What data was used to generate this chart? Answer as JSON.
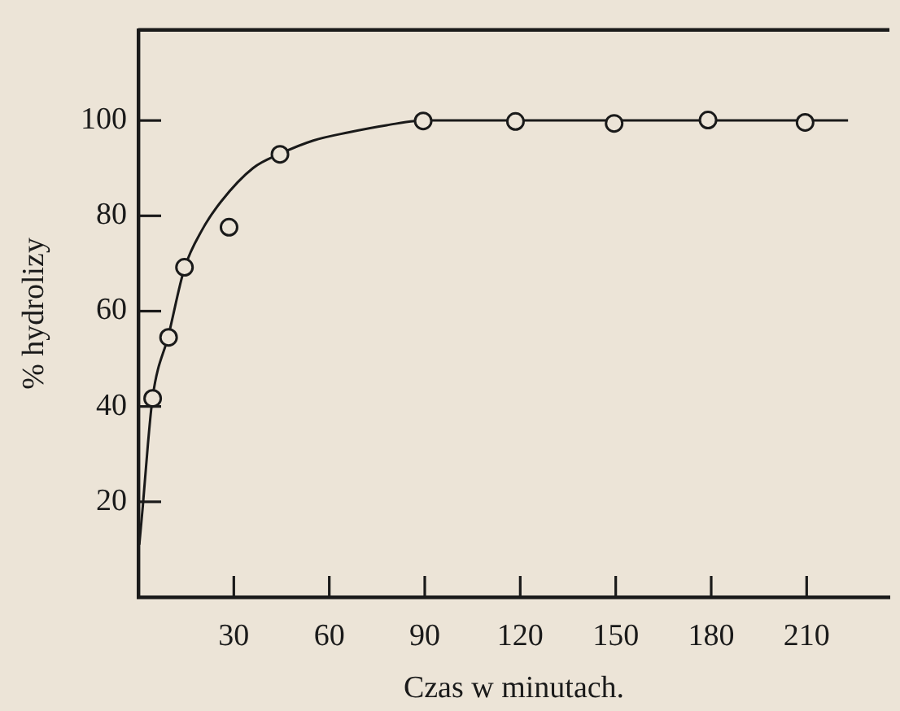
{
  "chart_data": {
    "type": "scatter",
    "xlabel": "Czas w minutach.",
    "ylabel": "% hydrolizy",
    "xlim": [
      0,
      236
    ],
    "ylim": [
      0,
      119
    ],
    "xticks": [
      30,
      60,
      90,
      120,
      150,
      180,
      210
    ],
    "yticks": [
      20,
      40,
      60,
      80,
      100
    ],
    "series": [
      {
        "type": "line",
        "color": "#1a1a1a",
        "marker": "none",
        "x": [
          0.3,
          1.4,
          3,
          4.5,
          9.5,
          14.5,
          20,
          26,
          36,
          44.5,
          55,
          66,
          78,
          89.5,
          223
        ],
        "values": [
          11,
          19,
          32,
          42,
          55,
          69,
          77,
          83,
          90,
          93,
          95.8,
          97.5,
          99,
          100,
          100
        ]
      },
      {
        "color": "#1a1a1a",
        "marker": "circle",
        "x": [
          4.5,
          9.5,
          14.5,
          28.5,
          44.5,
          89.5,
          118.5,
          149.5,
          179,
          209.5
        ],
        "values": [
          41.7,
          54.5,
          69.2,
          77.6,
          92.9,
          99.9,
          99.8,
          99.4,
          100.1,
          99.6
        ]
      }
    ]
  }
}
